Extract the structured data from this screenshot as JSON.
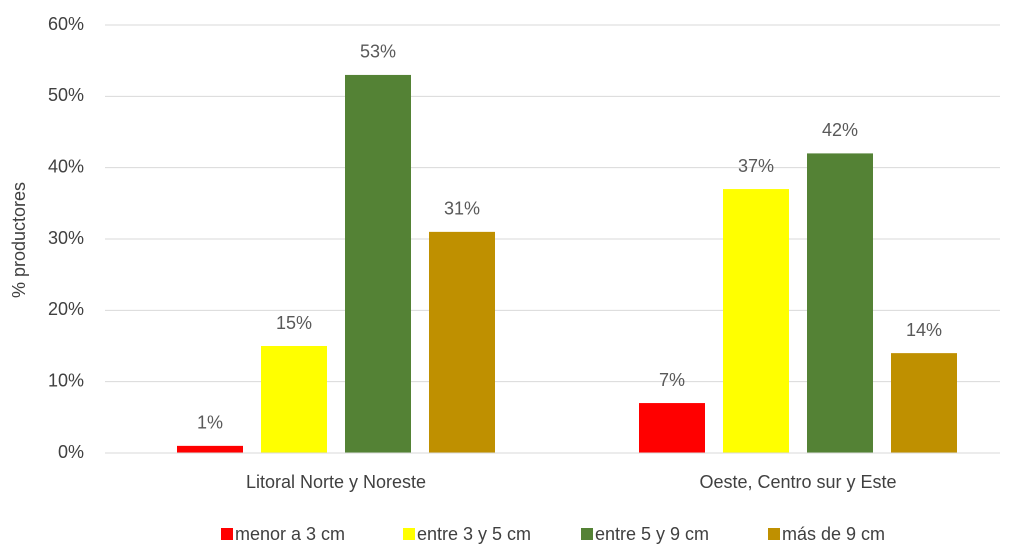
{
  "chart_data": {
    "type": "bar",
    "y_label": "% productores",
    "categories": [
      "Litoral Norte y Noreste",
      "Oeste, Centro sur y Este"
    ],
    "series": [
      {
        "name": "menor a 3 cm",
        "color": "#ff0000",
        "values": [
          1,
          7
        ],
        "value_labels": [
          "1%",
          "7%"
        ]
      },
      {
        "name": "entre 3 y 5 cm",
        "color": "#ffff00",
        "values": [
          15,
          37
        ],
        "value_labels": [
          "15%",
          "37%"
        ]
      },
      {
        "name": "entre 5 y 9 cm",
        "color": "#548235",
        "values": [
          53,
          42
        ],
        "value_labels": [
          "53%",
          "42%"
        ]
      },
      {
        "name": "más de 9 cm",
        "color": "#bf9000",
        "values": [
          31,
          14
        ],
        "value_labels": [
          "31%",
          "14%"
        ]
      }
    ],
    "ylim": [
      0,
      60
    ],
    "yticks": [
      {
        "value": 0,
        "label": "0%"
      },
      {
        "value": 10,
        "label": "10%"
      },
      {
        "value": 20,
        "label": "20%"
      },
      {
        "value": 30,
        "label": "30%"
      },
      {
        "value": 40,
        "label": "40%"
      },
      {
        "value": 50,
        "label": "50%"
      },
      {
        "value": 60,
        "label": "60%"
      }
    ],
    "grid": true,
    "legend": "bottom"
  }
}
